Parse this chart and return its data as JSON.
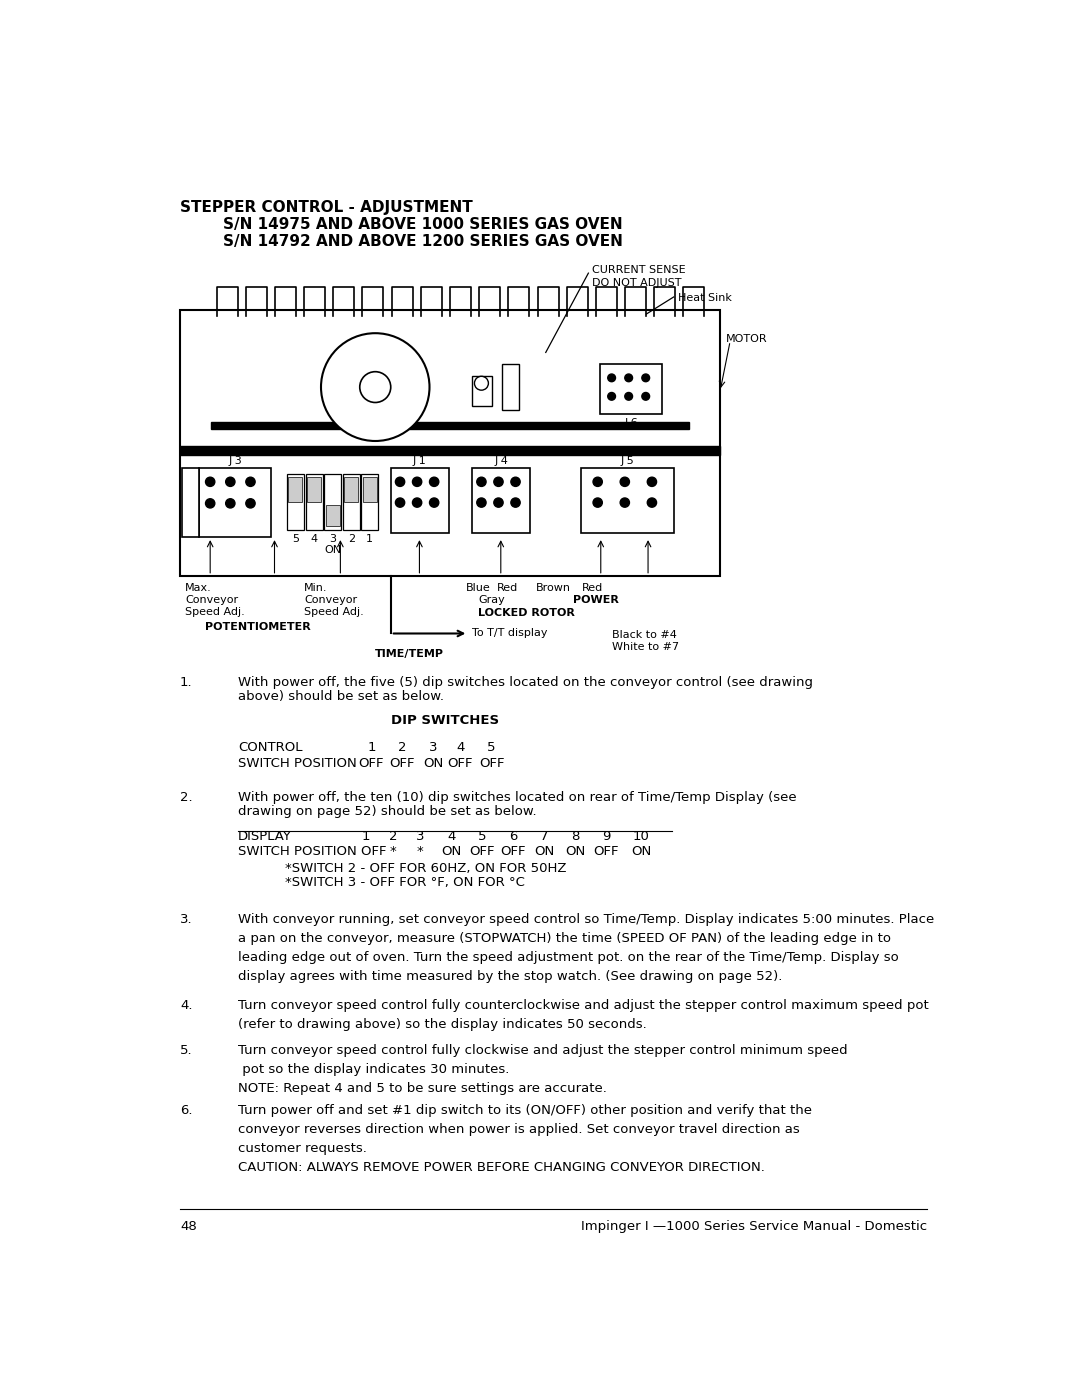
{
  "bg_color": "#ffffff",
  "title_line1": "STEPPER CONTROL - ADJUSTMENT",
  "title_line2": "S/N 14975 AND ABOVE 1000 SERIES GAS OVEN",
  "title_line3": "S/N 14792 AND ABOVE 1200 SERIES GAS OVEN",
  "page_number": "48",
  "footer_text": "Impinger I —1000 Series Service Manual - Domestic",
  "section1_num": "1.",
  "section1_text": "With power off, the five (5) dip switches located on the conveyor control (see drawing\nabove) should be set as below.",
  "dip_switches_title": "DIP SWITCHES",
  "section2_num": "2.",
  "section2_text": "With power off, the ten (10) dip switches located on rear of Time/Temp Display (see\ndrawing on page 52) should be set as below.",
  "switch_note1": "*SWITCH 2 - OFF FOR 60HZ, ON FOR 50HZ",
  "switch_note2": "*SWITCH 3 - OFF FOR °F, ON FOR °C",
  "section3_num": "3.",
  "section3_text": "With conveyor running, set conveyor speed control so Time/Temp. Display indicates 5:00 minutes. Place\na pan on the conveyor, measure (STOPWATCH) the time (SPEED OF PAN) of the leading edge in to\nleading edge out of oven. Turn the speed adjustment pot. on the rear of the Time/Temp. Display so\ndisplay agrees with time measured by the stop watch. (See drawing on page 52).",
  "section4_num": "4.",
  "section4_text": "Turn conveyor speed control fully counterclockwise and adjust the stepper control maximum speed pot\n(refer to drawing above) so the display indicates 50 seconds.",
  "section5_num": "5.",
  "section5_text": "Turn conveyor speed control fully clockwise and adjust the stepper control minimum speed\n pot so the display indicates 30 minutes.\nNOTE: Repeat 4 and 5 to be sure settings are accurate.",
  "section6_num": "6.",
  "section6_text": "Turn power off and set #1 dip switch to its (ON/OFF) other position and verify that the\nconveyor reverses direction when power is applied. Set conveyor travel direction as\ncustomer requests.\nCAUTION: ALWAYS REMOVE POWER BEFORE CHANGING CONVEYOR DIRECTION."
}
